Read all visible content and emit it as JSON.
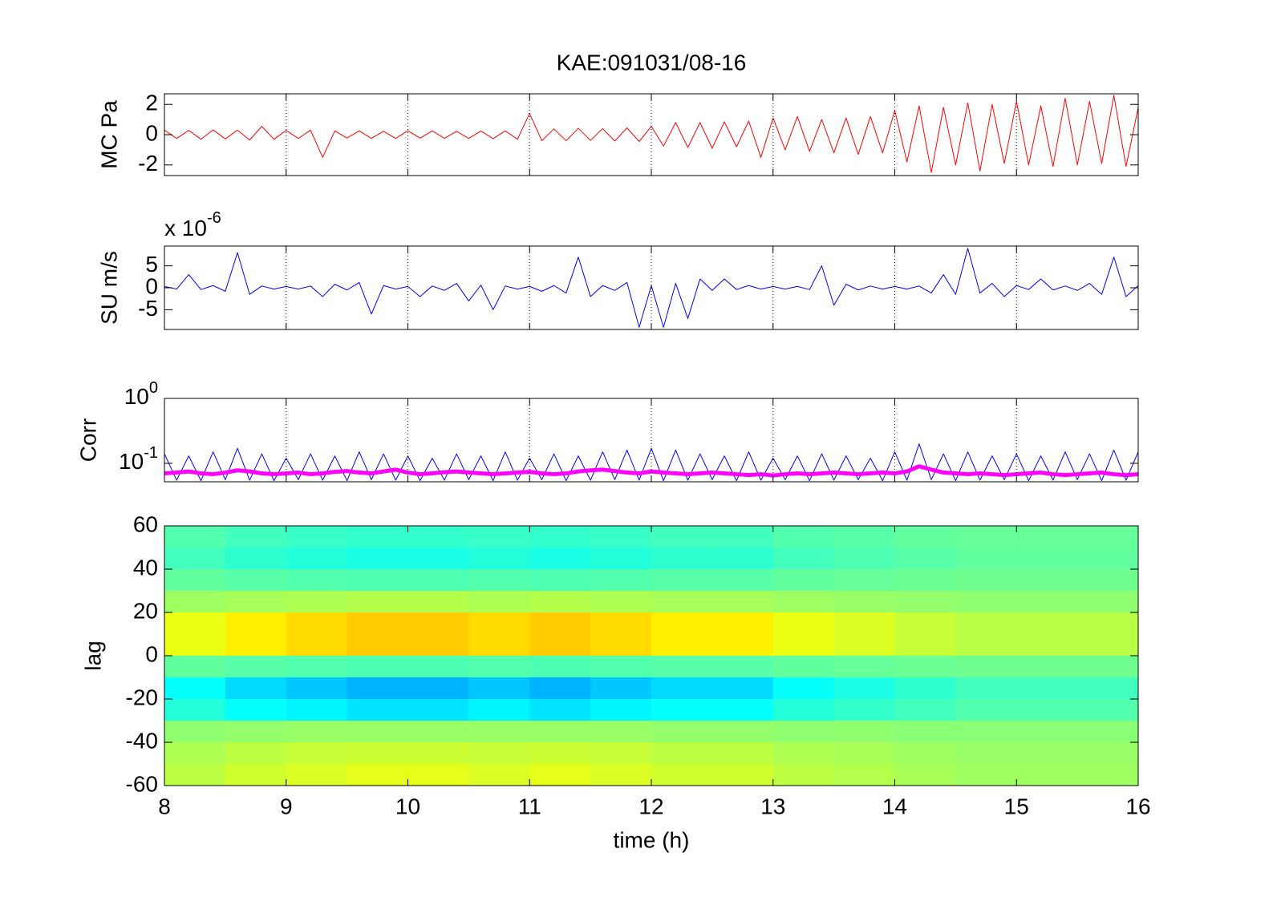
{
  "chart_data": [
    {
      "type": "line",
      "title": "KAE:091031/08-16",
      "ylabel": "MC Pa",
      "x": [
        8,
        8.1,
        8.2,
        8.3,
        8.4,
        8.5,
        8.6,
        8.7,
        8.8,
        8.9,
        9,
        9.1,
        9.2,
        9.3,
        9.4,
        9.5,
        9.6,
        9.7,
        9.8,
        9.9,
        10,
        10.1,
        10.2,
        10.3,
        10.4,
        10.5,
        10.6,
        10.7,
        10.8,
        10.9,
        11,
        11.1,
        11.2,
        11.3,
        11.4,
        11.5,
        11.6,
        11.7,
        11.8,
        11.9,
        12,
        12.1,
        12.2,
        12.3,
        12.4,
        12.5,
        12.6,
        12.7,
        12.8,
        12.9,
        13,
        13.1,
        13.2,
        13.3,
        13.4,
        13.5,
        13.6,
        13.7,
        13.8,
        13.9,
        14,
        14.1,
        14.2,
        14.3,
        14.4,
        14.5,
        14.6,
        14.7,
        14.8,
        14.9,
        15,
        15.1,
        15.2,
        15.3,
        15.4,
        15.5,
        15.6,
        15.7,
        15.8,
        15.9,
        16
      ],
      "series": [
        {
          "color": "#ff0000",
          "width": 1,
          "values": [
            0.3,
            -0.25,
            0.28,
            -0.3,
            0.32,
            -0.28,
            0.3,
            -0.35,
            0.55,
            -0.3,
            0.28,
            -0.25,
            0.3,
            -1.5,
            0.25,
            -0.22,
            0.25,
            -0.24,
            0.22,
            -0.25,
            0.26,
            -0.23,
            0.25,
            -0.24,
            0.22,
            -0.25,
            0.24,
            -0.26,
            0.25,
            -0.3,
            1.4,
            -0.4,
            0.38,
            -0.4,
            0.42,
            -0.38,
            0.4,
            -0.42,
            0.45,
            -0.45,
            0.55,
            -0.75,
            0.8,
            -0.85,
            0.8,
            -0.9,
            0.85,
            -0.8,
            0.9,
            -1.5,
            1.1,
            -1.0,
            1.2,
            -1.1,
            1.0,
            -1.2,
            1.1,
            -1.3,
            1.2,
            -1.2,
            1.6,
            -1.8,
            1.9,
            -2.5,
            1.8,
            -2.0,
            2.1,
            -2.4,
            2.0,
            -1.9,
            2.2,
            -2.0,
            1.9,
            -2.1,
            2.4,
            -2.0,
            2.2,
            -1.9,
            2.6,
            -2.1,
            1.8
          ]
        }
      ],
      "xlim": [
        8,
        16
      ],
      "xticks": [
        8,
        9,
        10,
        11,
        12,
        13,
        14,
        15,
        16
      ],
      "ylim": [
        -2.7,
        2.7
      ],
      "yticks": [
        -2,
        0,
        2
      ],
      "xgrid": true,
      "xticklabels": false
    },
    {
      "type": "line",
      "ylabel": "SU m/s",
      "multiplier": {
        "base": "x 10",
        "exponent": "-6"
      },
      "x": [
        8,
        8.1,
        8.2,
        8.3,
        8.4,
        8.5,
        8.6,
        8.7,
        8.8,
        8.9,
        9,
        9.1,
        9.2,
        9.3,
        9.4,
        9.5,
        9.6,
        9.7,
        9.8,
        9.9,
        10,
        10.1,
        10.2,
        10.3,
        10.4,
        10.5,
        10.6,
        10.7,
        10.8,
        10.9,
        11,
        11.1,
        11.2,
        11.3,
        11.4,
        11.5,
        11.6,
        11.7,
        11.8,
        11.9,
        12,
        12.1,
        12.2,
        12.3,
        12.4,
        12.5,
        12.6,
        12.7,
        12.8,
        12.9,
        13,
        13.1,
        13.2,
        13.3,
        13.4,
        13.5,
        13.6,
        13.7,
        13.8,
        13.9,
        14,
        14.1,
        14.2,
        14.3,
        14.4,
        14.5,
        14.6,
        14.7,
        14.8,
        14.9,
        15,
        15.1,
        15.2,
        15.3,
        15.4,
        15.5,
        15.6,
        15.7,
        15.8,
        15.9,
        16
      ],
      "series": [
        {
          "color": "#0000ff",
          "width": 1,
          "values": [
            0.3,
            -0.3,
            3,
            -0.4,
            0.5,
            -0.8,
            8,
            -1.5,
            0.4,
            -0.3,
            0.3,
            -0.3,
            0.4,
            -2,
            0.8,
            -0.5,
            1.2,
            -6,
            0.5,
            -0.3,
            0.3,
            -2,
            0.4,
            -0.6,
            1.0,
            -3,
            0.6,
            -5,
            0.4,
            -0.3,
            0.3,
            -0.8,
            0.5,
            -1.2,
            7,
            -2,
            0.5,
            -0.6,
            1.2,
            -9,
            0.5,
            -9,
            1.0,
            -7,
            2,
            -0.6,
            2,
            -0.4,
            0.5,
            -0.3,
            0.3,
            -0.3,
            0.3,
            -0.4,
            5,
            -4,
            0.8,
            -0.5,
            0.4,
            -0.3,
            0.3,
            -0.3,
            0.4,
            -1.2,
            3,
            -1.5,
            9,
            -1.2,
            1.0,
            -2,
            0.5,
            -0.4,
            2,
            -0.5,
            0.4,
            -0.6,
            1.0,
            -1.5,
            7,
            -2,
            0.5
          ]
        }
      ],
      "xlim": [
        8,
        16
      ],
      "xticks": [
        8,
        9,
        10,
        11,
        12,
        13,
        14,
        15,
        16
      ],
      "ylim": [
        -9.5,
        9.5
      ],
      "yticks": [
        -5,
        0,
        5
      ],
      "xgrid": true,
      "xticklabels": false
    },
    {
      "type": "line",
      "ylabel": "Corr",
      "yscale": "log",
      "x": [
        8,
        8.1,
        8.2,
        8.3,
        8.4,
        8.5,
        8.6,
        8.7,
        8.8,
        8.9,
        9,
        9.1,
        9.2,
        9.3,
        9.4,
        9.5,
        9.6,
        9.7,
        9.8,
        9.9,
        10,
        10.1,
        10.2,
        10.3,
        10.4,
        10.5,
        10.6,
        10.7,
        10.8,
        10.9,
        11,
        11.1,
        11.2,
        11.3,
        11.4,
        11.5,
        11.6,
        11.7,
        11.8,
        11.9,
        12,
        12.1,
        12.2,
        12.3,
        12.4,
        12.5,
        12.6,
        12.7,
        12.8,
        12.9,
        13,
        13.1,
        13.2,
        13.3,
        13.4,
        13.5,
        13.6,
        13.7,
        13.8,
        13.9,
        14,
        14.1,
        14.2,
        14.3,
        14.4,
        14.5,
        14.6,
        14.7,
        14.8,
        14.9,
        15,
        15.1,
        15.2,
        15.3,
        15.4,
        15.5,
        15.6,
        15.7,
        15.8,
        15.9,
        16
      ],
      "series": [
        {
          "color": "#0000ff",
          "width": 1,
          "values": [
            0.14,
            0.055,
            0.13,
            0.054,
            0.15,
            0.056,
            0.17,
            0.055,
            0.14,
            0.054,
            0.12,
            0.056,
            0.14,
            0.055,
            0.13,
            0.054,
            0.15,
            0.056,
            0.14,
            0.055,
            0.13,
            0.054,
            0.12,
            0.055,
            0.14,
            0.056,
            0.13,
            0.054,
            0.15,
            0.055,
            0.12,
            0.056,
            0.14,
            0.054,
            0.13,
            0.055,
            0.15,
            0.056,
            0.16,
            0.055,
            0.17,
            0.054,
            0.16,
            0.055,
            0.14,
            0.056,
            0.13,
            0.054,
            0.15,
            0.055,
            0.12,
            0.056,
            0.13,
            0.054,
            0.14,
            0.055,
            0.13,
            0.056,
            0.12,
            0.054,
            0.15,
            0.055,
            0.2,
            0.056,
            0.14,
            0.054,
            0.15,
            0.055,
            0.13,
            0.056,
            0.14,
            0.054,
            0.13,
            0.055,
            0.15,
            0.056,
            0.14,
            0.054,
            0.16,
            0.055,
            0.15
          ]
        },
        {
          "color": "#ff00ff",
          "width": 5,
          "values": [
            0.07,
            0.072,
            0.075,
            0.07,
            0.068,
            0.072,
            0.078,
            0.075,
            0.07,
            0.068,
            0.07,
            0.072,
            0.068,
            0.07,
            0.074,
            0.076,
            0.072,
            0.07,
            0.075,
            0.08,
            0.072,
            0.068,
            0.07,
            0.073,
            0.075,
            0.072,
            0.07,
            0.068,
            0.07,
            0.072,
            0.074,
            0.07,
            0.068,
            0.07,
            0.075,
            0.078,
            0.08,
            0.076,
            0.072,
            0.07,
            0.075,
            0.072,
            0.07,
            0.068,
            0.07,
            0.072,
            0.07,
            0.068,
            0.066,
            0.068,
            0.065,
            0.068,
            0.07,
            0.068,
            0.07,
            0.072,
            0.07,
            0.068,
            0.07,
            0.072,
            0.07,
            0.075,
            0.09,
            0.08,
            0.072,
            0.07,
            0.068,
            0.07,
            0.068,
            0.066,
            0.068,
            0.07,
            0.072,
            0.068,
            0.066,
            0.068,
            0.07,
            0.072,
            0.068,
            0.066,
            0.068
          ]
        }
      ],
      "xlim": [
        8,
        16
      ],
      "xticks": [
        8,
        9,
        10,
        11,
        12,
        13,
        14,
        15,
        16
      ],
      "ylim": [
        0.052,
        1
      ],
      "yticks": [
        {
          "value": 1,
          "label": "10",
          "exponent": "0"
        },
        {
          "value": 0.1,
          "label": "10",
          "exponent": "-1"
        }
      ],
      "xgrid": true,
      "xticklabels": false
    },
    {
      "type": "heatmap",
      "ylabel": "lag",
      "xlabel": "time (h)",
      "colormap": "jet",
      "clim": [
        -1,
        1
      ],
      "x": [
        8.25,
        8.75,
        9.25,
        9.75,
        10.25,
        10.75,
        11.25,
        11.75,
        12.25,
        12.75,
        13.25,
        13.75,
        14.25,
        14.75,
        15.25,
        15.75
      ],
      "y": [
        55,
        45,
        35,
        25,
        15,
        5,
        -5,
        -15,
        -25,
        -35,
        -45,
        -55
      ],
      "z": [
        [
          -0.09,
          -0.12,
          -0.14,
          -0.15,
          -0.15,
          -0.14,
          -0.15,
          -0.14,
          -0.12,
          -0.12,
          -0.09,
          -0.08,
          -0.06,
          -0.05,
          -0.05,
          -0.05
        ],
        [
          -0.12,
          -0.16,
          -0.18,
          -0.2,
          -0.2,
          -0.18,
          -0.2,
          -0.18,
          -0.16,
          -0.16,
          -0.12,
          -0.1,
          -0.08,
          -0.06,
          -0.06,
          -0.06
        ],
        [
          -0.06,
          -0.08,
          -0.09,
          -0.1,
          -0.1,
          -0.09,
          -0.1,
          -0.09,
          -0.08,
          -0.08,
          -0.06,
          -0.05,
          -0.04,
          -0.03,
          -0.03,
          -0.03
        ],
        [
          0.06,
          0.08,
          0.09,
          0.1,
          0.1,
          0.09,
          0.1,
          0.09,
          0.08,
          0.08,
          0.06,
          0.05,
          0.04,
          0.03,
          0.03,
          0.03
        ],
        [
          0.21,
          0.28,
          0.32,
          0.35,
          0.35,
          0.32,
          0.35,
          0.32,
          0.28,
          0.28,
          0.21,
          0.18,
          0.14,
          0.11,
          0.11,
          0.11
        ],
        [
          0.21,
          0.28,
          0.32,
          0.35,
          0.35,
          0.32,
          0.35,
          0.32,
          0.28,
          0.28,
          0.21,
          0.18,
          0.14,
          0.11,
          0.11,
          0.11
        ],
        [
          -0.06,
          -0.08,
          -0.09,
          -0.1,
          -0.1,
          -0.09,
          -0.1,
          -0.09,
          -0.08,
          -0.08,
          -0.06,
          -0.05,
          -0.04,
          -0.03,
          -0.03,
          -0.03
        ],
        [
          -0.24,
          -0.32,
          -0.36,
          -0.4,
          -0.4,
          -0.36,
          -0.4,
          -0.36,
          -0.32,
          -0.32,
          -0.24,
          -0.2,
          -0.16,
          -0.12,
          -0.12,
          -0.12
        ],
        [
          -0.18,
          -0.24,
          -0.27,
          -0.3,
          -0.3,
          -0.27,
          -0.3,
          -0.27,
          -0.24,
          -0.24,
          -0.18,
          -0.15,
          -0.12,
          -0.09,
          -0.09,
          -0.09
        ],
        [
          0.03,
          0.04,
          0.05,
          0.05,
          0.05,
          0.05,
          0.05,
          0.05,
          0.04,
          0.04,
          0.03,
          0.03,
          0.02,
          0.02,
          0.02,
          0.02
        ],
        [
          0.09,
          0.12,
          0.14,
          0.15,
          0.15,
          0.14,
          0.15,
          0.14,
          0.12,
          0.12,
          0.09,
          0.08,
          0.06,
          0.05,
          0.05,
          0.05
        ],
        [
          0.12,
          0.16,
          0.18,
          0.2,
          0.2,
          0.18,
          0.2,
          0.18,
          0.16,
          0.16,
          0.12,
          0.1,
          0.08,
          0.06,
          0.06,
          0.06
        ]
      ],
      "xlim": [
        8,
        16
      ],
      "xticks": [
        8,
        9,
        10,
        11,
        12,
        13,
        14,
        15,
        16
      ],
      "ylim": [
        -60,
        60
      ],
      "yticks": [
        -60,
        -40,
        -20,
        0,
        20,
        40,
        60
      ],
      "xticklabels": true
    }
  ]
}
